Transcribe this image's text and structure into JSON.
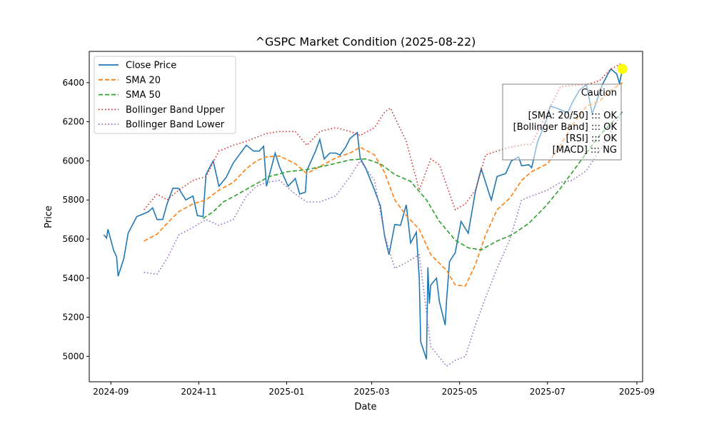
{
  "chart_data": {
    "type": "line",
    "title": "^GSPC Market Condition (2025-08-22)",
    "xlabel": "Date",
    "ylabel": "Price",
    "xlim": [
      "2024-08-17",
      "2025-09-05"
    ],
    "ylim": [
      4870,
      6560
    ],
    "x_ticks": [
      "2024-09",
      "2024-11",
      "2025-01",
      "2025-03",
      "2025-05",
      "2025-07",
      "2025-09"
    ],
    "y_ticks": [
      5000,
      5200,
      5400,
      5600,
      5800,
      6000,
      6200,
      6400
    ],
    "grid": false,
    "legend_position": "top-left",
    "series": [
      {
        "name": "Close Price",
        "color": "#1f77b4",
        "style": "solid",
        "points": [
          [
            "2024-08-27",
            5620
          ],
          [
            "2024-08-28",
            5615
          ],
          [
            "2024-08-29",
            5605
          ],
          [
            "2024-08-30",
            5650
          ],
          [
            "2024-09-03",
            5540
          ],
          [
            "2024-09-05",
            5510
          ],
          [
            "2024-09-06",
            5410
          ],
          [
            "2024-09-10",
            5500
          ],
          [
            "2024-09-13",
            5630
          ],
          [
            "2024-09-19",
            5715
          ],
          [
            "2024-09-24",
            5730
          ],
          [
            "2024-09-27",
            5740
          ],
          [
            "2024-09-30",
            5760
          ],
          [
            "2024-10-03",
            5700
          ],
          [
            "2024-10-07",
            5700
          ],
          [
            "2024-10-10",
            5780
          ],
          [
            "2024-10-14",
            5860
          ],
          [
            "2024-10-18",
            5860
          ],
          [
            "2024-10-23",
            5800
          ],
          [
            "2024-10-28",
            5820
          ],
          [
            "2024-10-31",
            5720
          ],
          [
            "2024-11-04",
            5715
          ],
          [
            "2024-11-06",
            5930
          ],
          [
            "2024-11-11",
            6000
          ],
          [
            "2024-11-15",
            5870
          ],
          [
            "2024-11-20",
            5915
          ],
          [
            "2024-11-25",
            5990
          ],
          [
            "2024-11-29",
            6030
          ],
          [
            "2024-12-04",
            6080
          ],
          [
            "2024-12-09",
            6050
          ],
          [
            "2024-12-13",
            6050
          ],
          [
            "2024-12-16",
            6075
          ],
          [
            "2024-12-18",
            5870
          ],
          [
            "2024-12-24",
            6040
          ],
          [
            "2024-12-27",
            5970
          ],
          [
            "2025-01-02",
            5870
          ],
          [
            "2025-01-07",
            5910
          ],
          [
            "2025-01-10",
            5830
          ],
          [
            "2025-01-14",
            5840
          ],
          [
            "2025-01-15",
            5950
          ],
          [
            "2025-01-21",
            6050
          ],
          [
            "2025-01-24",
            6110
          ],
          [
            "2025-01-27",
            6010
          ],
          [
            "2025-01-31",
            6040
          ],
          [
            "2025-02-04",
            6040
          ],
          [
            "2025-02-07",
            6030
          ],
          [
            "2025-02-11",
            6070
          ],
          [
            "2025-02-14",
            6115
          ],
          [
            "2025-02-19",
            6145
          ],
          [
            "2025-02-21",
            6015
          ],
          [
            "2025-02-25",
            5960
          ],
          [
            "2025-03-03",
            5850
          ],
          [
            "2025-03-07",
            5770
          ],
          [
            "2025-03-10",
            5615
          ],
          [
            "2025-03-13",
            5520
          ],
          [
            "2025-03-17",
            5675
          ],
          [
            "2025-03-21",
            5670
          ],
          [
            "2025-03-25",
            5775
          ],
          [
            "2025-03-28",
            5580
          ],
          [
            "2025-04-01",
            5635
          ],
          [
            "2025-04-03",
            5400
          ],
          [
            "2025-04-04",
            5075
          ],
          [
            "2025-04-08",
            4985
          ],
          [
            "2025-04-09",
            5455
          ],
          [
            "2025-04-10",
            5270
          ],
          [
            "2025-04-11",
            5365
          ],
          [
            "2025-04-15",
            5400
          ],
          [
            "2025-04-17",
            5280
          ],
          [
            "2025-04-21",
            5160
          ],
          [
            "2025-04-22",
            5290
          ],
          [
            "2025-04-24",
            5485
          ],
          [
            "2025-04-28",
            5530
          ],
          [
            "2025-05-02",
            5690
          ],
          [
            "2025-05-07",
            5630
          ],
          [
            "2025-05-12",
            5845
          ],
          [
            "2025-05-16",
            5960
          ],
          [
            "2025-05-21",
            5845
          ],
          [
            "2025-05-23",
            5800
          ],
          [
            "2025-05-27",
            5920
          ],
          [
            "2025-06-02",
            5935
          ],
          [
            "2025-06-06",
            6000
          ],
          [
            "2025-06-11",
            6020
          ],
          [
            "2025-06-13",
            5975
          ],
          [
            "2025-06-18",
            5980
          ],
          [
            "2025-06-20",
            5965
          ],
          [
            "2025-06-24",
            6095
          ],
          [
            "2025-06-30",
            6205
          ],
          [
            "2025-07-03",
            6280
          ],
          [
            "2025-07-09",
            6265
          ],
          [
            "2025-07-15",
            6245
          ],
          [
            "2025-07-18",
            6295
          ],
          [
            "2025-07-23",
            6360
          ],
          [
            "2025-07-28",
            6390
          ],
          [
            "2025-08-01",
            6240
          ],
          [
            "2025-08-06",
            6345
          ],
          [
            "2025-08-08",
            6390
          ],
          [
            "2025-08-12",
            6445
          ],
          [
            "2025-08-14",
            6470
          ],
          [
            "2025-08-18",
            6445
          ],
          [
            "2025-08-20",
            6395
          ],
          [
            "2025-08-22",
            6470
          ]
        ]
      },
      {
        "name": "SMA 20",
        "color": "#ff7f0e",
        "style": "dashed",
        "points": [
          [
            "2024-09-24",
            5590
          ],
          [
            "2024-10-03",
            5625
          ],
          [
            "2024-10-10",
            5680
          ],
          [
            "2024-10-18",
            5740
          ],
          [
            "2024-10-28",
            5780
          ],
          [
            "2024-11-06",
            5800
          ],
          [
            "2024-11-15",
            5850
          ],
          [
            "2024-11-25",
            5890
          ],
          [
            "2024-12-04",
            5960
          ],
          [
            "2024-12-11",
            6000
          ],
          [
            "2024-12-18",
            6020
          ],
          [
            "2024-12-27",
            6025
          ],
          [
            "2025-01-07",
            5985
          ],
          [
            "2025-01-15",
            5935
          ],
          [
            "2025-01-24",
            5970
          ],
          [
            "2025-02-04",
            6015
          ],
          [
            "2025-02-14",
            6040
          ],
          [
            "2025-02-21",
            6070
          ],
          [
            "2025-03-03",
            6030
          ],
          [
            "2025-03-10",
            5940
          ],
          [
            "2025-03-17",
            5800
          ],
          [
            "2025-03-25",
            5720
          ],
          [
            "2025-04-03",
            5650
          ],
          [
            "2025-04-11",
            5520
          ],
          [
            "2025-04-22",
            5440
          ],
          [
            "2025-04-28",
            5365
          ],
          [
            "2025-05-05",
            5360
          ],
          [
            "2025-05-12",
            5470
          ],
          [
            "2025-05-19",
            5620
          ],
          [
            "2025-05-27",
            5750
          ],
          [
            "2025-06-05",
            5810
          ],
          [
            "2025-06-13",
            5900
          ],
          [
            "2025-06-20",
            5945
          ],
          [
            "2025-07-01",
            5985
          ],
          [
            "2025-07-10",
            6080
          ],
          [
            "2025-07-18",
            6180
          ],
          [
            "2025-07-28",
            6280
          ],
          [
            "2025-08-06",
            6305
          ],
          [
            "2025-08-14",
            6360
          ],
          [
            "2025-08-22",
            6400
          ]
        ]
      },
      {
        "name": "SMA 50",
        "color": "#2ca02c",
        "style": "dashed",
        "points": [
          [
            "2024-11-04",
            5705
          ],
          [
            "2024-11-11",
            5740
          ],
          [
            "2024-11-18",
            5790
          ],
          [
            "2024-11-27",
            5825
          ],
          [
            "2024-12-09",
            5875
          ],
          [
            "2024-12-20",
            5920
          ],
          [
            "2025-01-02",
            5945
          ],
          [
            "2025-01-15",
            5955
          ],
          [
            "2025-01-31",
            5980
          ],
          [
            "2025-02-14",
            6005
          ],
          [
            "2025-02-25",
            6010
          ],
          [
            "2025-03-07",
            5985
          ],
          [
            "2025-03-17",
            5930
          ],
          [
            "2025-03-28",
            5895
          ],
          [
            "2025-04-08",
            5800
          ],
          [
            "2025-04-17",
            5690
          ],
          [
            "2025-04-28",
            5595
          ],
          [
            "2025-05-07",
            5555
          ],
          [
            "2025-05-16",
            5545
          ],
          [
            "2025-05-27",
            5590
          ],
          [
            "2025-06-06",
            5620
          ],
          [
            "2025-06-18",
            5680
          ],
          [
            "2025-06-30",
            5770
          ],
          [
            "2025-07-10",
            5860
          ],
          [
            "2025-07-23",
            5990
          ],
          [
            "2025-08-06",
            6130
          ],
          [
            "2025-08-22",
            6250
          ]
        ]
      },
      {
        "name": "Bollinger Band Upper",
        "color": "#d62728",
        "style": "dotted",
        "points": [
          [
            "2024-09-24",
            5750
          ],
          [
            "2024-10-03",
            5830
          ],
          [
            "2024-10-10",
            5800
          ],
          [
            "2024-10-18",
            5850
          ],
          [
            "2024-10-28",
            5900
          ],
          [
            "2024-11-06",
            5920
          ],
          [
            "2024-11-15",
            6050
          ],
          [
            "2024-11-25",
            6080
          ],
          [
            "2024-12-04",
            6100
          ],
          [
            "2024-12-11",
            6120
          ],
          [
            "2024-12-18",
            6140
          ],
          [
            "2024-12-27",
            6150
          ],
          [
            "2025-01-07",
            6150
          ],
          [
            "2025-01-15",
            6080
          ],
          [
            "2025-01-24",
            6150
          ],
          [
            "2025-02-04",
            6170
          ],
          [
            "2025-02-14",
            6150
          ],
          [
            "2025-02-21",
            6130
          ],
          [
            "2025-03-03",
            6170
          ],
          [
            "2025-03-10",
            6250
          ],
          [
            "2025-03-14",
            6270
          ],
          [
            "2025-03-25",
            6100
          ],
          [
            "2025-04-03",
            5850
          ],
          [
            "2025-04-11",
            6010
          ],
          [
            "2025-04-17",
            5980
          ],
          [
            "2025-04-28",
            5750
          ],
          [
            "2025-05-05",
            5780
          ],
          [
            "2025-05-12",
            5850
          ],
          [
            "2025-05-19",
            6030
          ],
          [
            "2025-05-27",
            6050
          ],
          [
            "2025-06-05",
            6070
          ],
          [
            "2025-06-13",
            6080
          ],
          [
            "2025-06-20",
            6085
          ],
          [
            "2025-07-01",
            6250
          ],
          [
            "2025-07-10",
            6380
          ],
          [
            "2025-07-18",
            6385
          ],
          [
            "2025-07-28",
            6390
          ],
          [
            "2025-08-06",
            6410
          ],
          [
            "2025-08-14",
            6470
          ],
          [
            "2025-08-22",
            6500
          ]
        ]
      },
      {
        "name": "Bollinger Band Lower",
        "color": "#9467bd",
        "style": "dotted",
        "points": [
          [
            "2024-09-24",
            5430
          ],
          [
            "2024-10-03",
            5420
          ],
          [
            "2024-10-10",
            5500
          ],
          [
            "2024-10-18",
            5620
          ],
          [
            "2024-10-28",
            5660
          ],
          [
            "2024-11-06",
            5700
          ],
          [
            "2024-11-15",
            5670
          ],
          [
            "2024-11-25",
            5700
          ],
          [
            "2024-12-04",
            5820
          ],
          [
            "2024-12-11",
            5870
          ],
          [
            "2024-12-18",
            5890
          ],
          [
            "2024-12-27",
            5900
          ],
          [
            "2025-01-07",
            5830
          ],
          [
            "2025-01-15",
            5790
          ],
          [
            "2025-01-24",
            5790
          ],
          [
            "2025-02-04",
            5820
          ],
          [
            "2025-02-14",
            5920
          ],
          [
            "2025-02-21",
            6000
          ],
          [
            "2025-03-03",
            5900
          ],
          [
            "2025-03-10",
            5620
          ],
          [
            "2025-03-17",
            5450
          ],
          [
            "2025-03-25",
            5480
          ],
          [
            "2025-04-03",
            5520
          ],
          [
            "2025-04-11",
            5050
          ],
          [
            "2025-04-22",
            4950
          ],
          [
            "2025-04-28",
            4980
          ],
          [
            "2025-05-05",
            5000
          ],
          [
            "2025-05-12",
            5160
          ],
          [
            "2025-05-19",
            5300
          ],
          [
            "2025-05-27",
            5450
          ],
          [
            "2025-06-05",
            5600
          ],
          [
            "2025-06-13",
            5800
          ],
          [
            "2025-06-20",
            5820
          ],
          [
            "2025-07-01",
            5850
          ],
          [
            "2025-07-10",
            5890
          ],
          [
            "2025-07-18",
            5900
          ],
          [
            "2025-07-28",
            5950
          ],
          [
            "2025-08-06",
            6050
          ],
          [
            "2025-08-14",
            6150
          ],
          [
            "2025-08-22",
            6250
          ]
        ]
      }
    ],
    "marker": {
      "date": "2025-08-22",
      "value": 6470,
      "color": "#ffff00"
    },
    "annotation": {
      "lines": [
        "Caution",
        "",
        "[SMA: 20/50] ::: OK",
        "[Bollinger Band] ::: OK",
        "[RSI] ::: OK",
        "[MACD] ::: NG"
      ]
    }
  }
}
